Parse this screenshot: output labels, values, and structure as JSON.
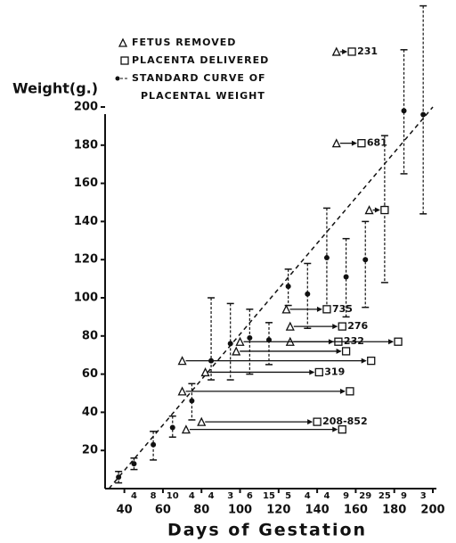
{
  "chart_data": {
    "type": "errorbar",
    "y_label": "Weight(g.)",
    "x_label": "Days of Gestation",
    "legend": [
      "FETUS REMOVED",
      "PLACENTA DELIVERED",
      "STANDARD CURVE OF",
      "PLACENTAL WEIGHT"
    ],
    "xlim": [
      30,
      200
    ],
    "ylim": [
      0,
      200
    ],
    "xticks": [
      40,
      60,
      80,
      100,
      120,
      140,
      160,
      180,
      200
    ],
    "yticks": [
      20,
      40,
      60,
      80,
      100,
      120,
      140,
      160,
      180,
      200
    ],
    "x": [
      37,
      45,
      55,
      65,
      75,
      85,
      95,
      105,
      115,
      125,
      135,
      145,
      155,
      165,
      175,
      185,
      195
    ],
    "values": [
      6,
      13,
      23,
      32,
      46,
      67,
      76,
      79,
      78,
      106,
      102,
      121,
      111,
      120,
      147,
      198,
      196
    ],
    "upper": [
      9,
      16,
      30,
      38,
      55,
      100,
      97,
      94,
      87,
      115,
      118,
      147,
      131,
      140,
      185,
      230,
      253
    ],
    "lower": [
      3,
      10,
      15,
      27,
      36,
      57,
      57,
      60,
      65,
      96,
      84,
      95,
      90,
      95,
      108,
      165,
      144
    ],
    "counts": [
      null,
      "4",
      "8",
      "10",
      "4",
      "4",
      "3",
      "6",
      "15",
      "5",
      "4",
      "4",
      "9",
      "29",
      "25",
      "9",
      "3"
    ],
    "fit": {
      "x": [
        32,
        200
      ],
      "y": [
        0,
        200
      ]
    },
    "arrows": [
      {
        "start": 150,
        "end": 158,
        "weight": 229,
        "label": "231"
      },
      {
        "start": 150,
        "end": 163,
        "weight": 181,
        "label": "681"
      },
      {
        "start": 167,
        "end": 175,
        "weight": 146
      },
      {
        "start": 124,
        "end": 145,
        "weight": 94,
        "label": "735"
      },
      {
        "start": 126,
        "end": 153,
        "weight": 85,
        "label": "276"
      },
      {
        "start": 126,
        "end": 151,
        "weight": 77,
        "label": "232"
      },
      {
        "start": 100,
        "end": 182,
        "weight": 77
      },
      {
        "start": 98,
        "end": 155,
        "weight": 72
      },
      {
        "start": 70,
        "end": 168,
        "weight": 67
      },
      {
        "start": 82,
        "end": 141,
        "weight": 61,
        "label": "319"
      },
      {
        "start": 70,
        "end": 157,
        "weight": 51
      },
      {
        "start": 80,
        "end": 140,
        "weight": 35,
        "label": "208-852"
      },
      {
        "start": 72,
        "end": 153,
        "weight": 31
      }
    ]
  }
}
